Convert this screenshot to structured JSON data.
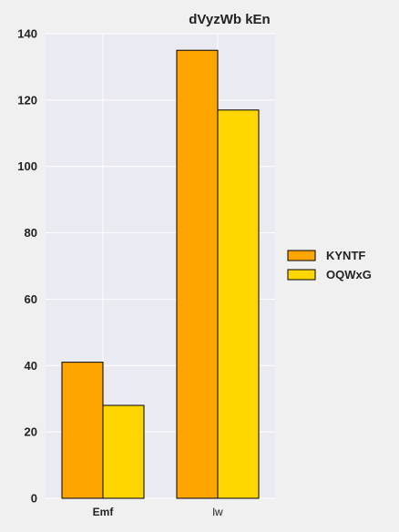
{
  "chart_data": {
    "type": "bar",
    "title": "dVyzWb  kEn",
    "categories": [
      "Emf",
      "lw"
    ],
    "series": [
      {
        "name": "KYNTF",
        "values": [
          41,
          135
        ],
        "color": "#FFA500"
      },
      {
        "name": "OQWxG",
        "values": [
          28,
          117
        ],
        "color": "#FFD700"
      }
    ],
    "ylim": [
      0,
      140
    ],
    "yticks": [
      "0",
      "20",
      "40",
      "60",
      "80",
      "100",
      "120",
      "140"
    ],
    "xlabel": "",
    "ylabel": "",
    "grid": true,
    "legend_position": "right",
    "plot_background": "#eaeaf2",
    "bar_edge_color": "#000000"
  }
}
